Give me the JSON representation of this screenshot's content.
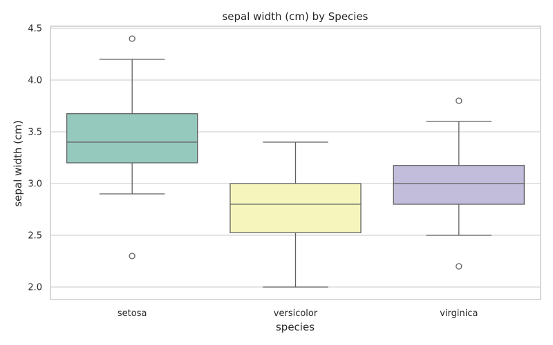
{
  "chart_data": {
    "type": "box",
    "title": "sepal width (cm) by Species",
    "xlabel": "species",
    "ylabel": "sepal width (cm)",
    "ylim": [
      1.88,
      4.52
    ],
    "yticks": [
      "2.0",
      "2.5",
      "3.0",
      "3.5",
      "4.0",
      "4.5"
    ],
    "grid": true,
    "categories": [
      "setosa",
      "versicolor",
      "virginica"
    ],
    "boxes": [
      {
        "category": "setosa",
        "whisker_low": 2.9,
        "q1": 3.2,
        "median": 3.4,
        "q3": 3.675,
        "whisker_high": 4.2,
        "outliers": [
          4.4,
          2.3
        ],
        "color": "#96c9be"
      },
      {
        "category": "versicolor",
        "whisker_low": 2.0,
        "q1": 2.525,
        "median": 2.8,
        "q3": 3.0,
        "whisker_high": 3.4,
        "outliers": [],
        "color": "#f6f6bc"
      },
      {
        "category": "virginica",
        "whisker_low": 2.5,
        "q1": 2.8,
        "median": 3.0,
        "q3": 3.175,
        "whisker_high": 3.6,
        "outliers": [
          3.8,
          2.2
        ],
        "color": "#c1bdda"
      }
    ],
    "colors": {
      "edge": "#5f5f5f",
      "grid": "#d3d3d3",
      "frame": "#cccccc",
      "text": "#262626"
    }
  }
}
